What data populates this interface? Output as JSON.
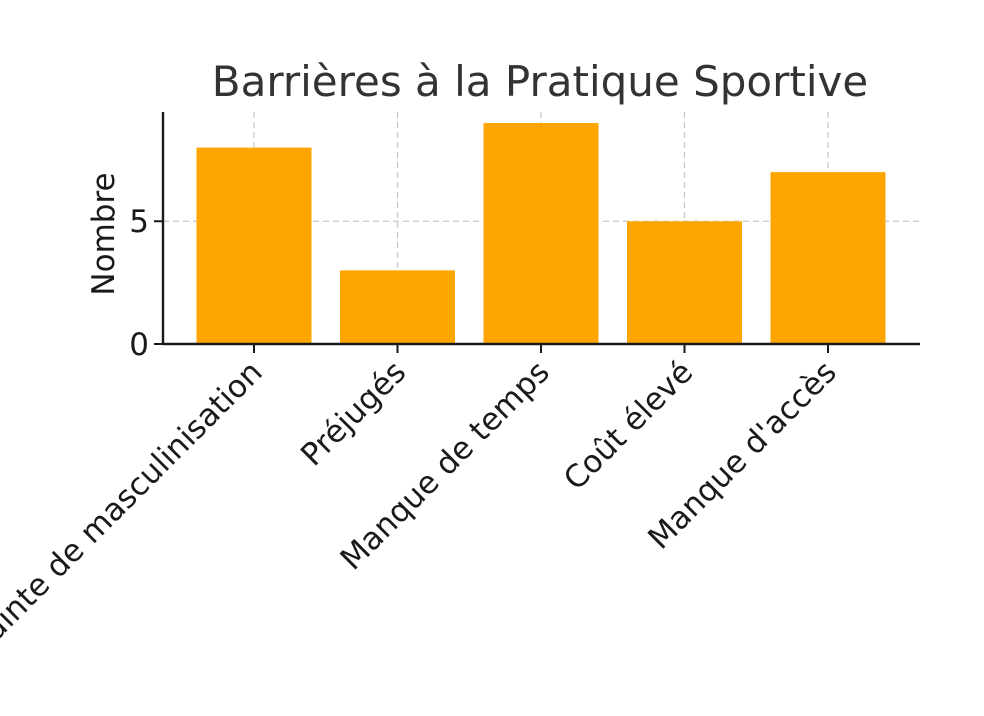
{
  "chart_data": {
    "type": "bar",
    "title": "Barrières à la Pratique Sportive",
    "xlabel": "",
    "ylabel": "Nombre",
    "categories": [
      "Crainte de masculinisation",
      "Préjugés",
      "Manque de temps",
      "Coût élevé",
      "Manque d'accès"
    ],
    "values": [
      8,
      3,
      9,
      5,
      7
    ],
    "ylim": [
      0,
      9.45
    ],
    "yticks": [
      0,
      5
    ],
    "grid": true,
    "bar_color": "#FFA500",
    "axis_color": "#1a1a1a",
    "grid_color": "#c8c8c8"
  }
}
